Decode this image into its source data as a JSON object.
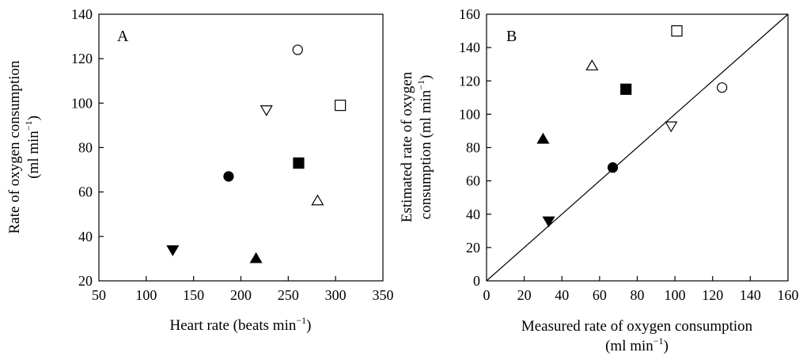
{
  "chart_data": [
    {
      "type": "scatter",
      "panel_label": "A",
      "xlabel": "Heart rate (beats min",
      "xlabel_sup": "−1",
      "xlabel_tail": ")",
      "ylabel_line1": "Rate of oxygen consumption",
      "ylabel_line2": "(ml min",
      "ylabel_sup": "−1",
      "ylabel_tail": ")",
      "xlim": [
        50,
        350
      ],
      "ylim": [
        20,
        140
      ],
      "xticks": [
        50,
        100,
        150,
        200,
        250,
        300,
        350
      ],
      "yticks": [
        20,
        40,
        60,
        80,
        100,
        120,
        140
      ],
      "points": [
        {
          "marker": "open-circle",
          "x": 260,
          "y": 124
        },
        {
          "marker": "open-square",
          "x": 305,
          "y": 99
        },
        {
          "marker": "open-triangle-down",
          "x": 227,
          "y": 97
        },
        {
          "marker": "filled-square",
          "x": 261,
          "y": 73
        },
        {
          "marker": "filled-circle",
          "x": 187,
          "y": 67
        },
        {
          "marker": "open-triangle-up",
          "x": 281,
          "y": 56
        },
        {
          "marker": "filled-triangle-down",
          "x": 128,
          "y": 34
        },
        {
          "marker": "filled-triangle-up",
          "x": 216,
          "y": 30
        }
      ]
    },
    {
      "type": "scatter",
      "panel_label": "B",
      "xlabel_line1": "Measured rate of oxygen consumption",
      "xlabel_line2": "(ml min",
      "xlabel_sup": "−1",
      "xlabel_tail": ")",
      "ylabel_line1": "Estimated rate of oxygen",
      "ylabel_line2": "consumption (ml min",
      "ylabel_sup": "−1",
      "ylabel_tail": ")",
      "xlim": [
        0,
        160
      ],
      "ylim": [
        0,
        160
      ],
      "xticks": [
        0,
        20,
        40,
        60,
        80,
        100,
        120,
        140,
        160
      ],
      "yticks": [
        0,
        20,
        40,
        60,
        80,
        100,
        120,
        140,
        160
      ],
      "identity_line": true,
      "points": [
        {
          "marker": "open-square",
          "x": 101,
          "y": 150
        },
        {
          "marker": "open-triangle-up",
          "x": 56,
          "y": 129
        },
        {
          "marker": "open-circle",
          "x": 125,
          "y": 116
        },
        {
          "marker": "filled-square",
          "x": 74,
          "y": 115
        },
        {
          "marker": "open-triangle-down",
          "x": 98,
          "y": 93
        },
        {
          "marker": "filled-triangle-up",
          "x": 30,
          "y": 85
        },
        {
          "marker": "filled-circle",
          "x": 67,
          "y": 68
        },
        {
          "marker": "filled-triangle-down",
          "x": 33,
          "y": 36
        }
      ]
    }
  ]
}
